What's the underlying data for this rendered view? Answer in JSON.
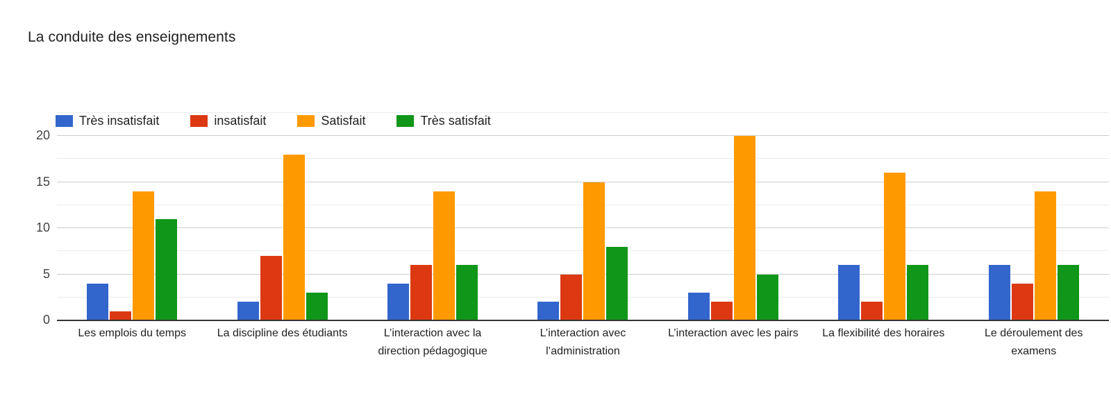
{
  "title": "La conduite des enseignements",
  "colors": {
    "tres_insatisfait": "#3366CC",
    "insatisfait": "#DC3912",
    "satisfait": "#FF9900",
    "tres_satisfait": "#109618",
    "gridline_major": "#cccccc",
    "gridline_minor": "#ebebeb",
    "axis_line": "#333333"
  },
  "chart_data": {
    "type": "bar",
    "title": "La conduite des enseignements",
    "categories": [
      "Les emplois du temps",
      "La discipline des étudiants",
      "L’interaction avec la direction pédagogique",
      "L’interaction avec l’administration",
      "L’interaction avec les pairs",
      "La flexibilité des horaires",
      "Le déroulement des examens"
    ],
    "series": [
      {
        "name": "Très insatisfait",
        "color": "#3366CC",
        "values": [
          4,
          2,
          4,
          2,
          3,
          6,
          6
        ]
      },
      {
        "name": "insatisfait",
        "color": "#DC3912",
        "values": [
          1,
          7,
          6,
          5,
          2,
          2,
          4
        ]
      },
      {
        "name": "Satisfait",
        "color": "#FF9900",
        "values": [
          14,
          18,
          14,
          15,
          20,
          16,
          14
        ]
      },
      {
        "name": "Très satisfait",
        "color": "#109618",
        "values": [
          11,
          3,
          6,
          8,
          5,
          6,
          6
        ]
      }
    ],
    "xlabel": "",
    "ylabel": "",
    "ylim": [
      0,
      20
    ],
    "yticks": [
      0,
      5,
      10,
      15,
      20
    ],
    "minor_tick_step": 2.5,
    "grid": true,
    "legend_position": "top-left-inside"
  }
}
